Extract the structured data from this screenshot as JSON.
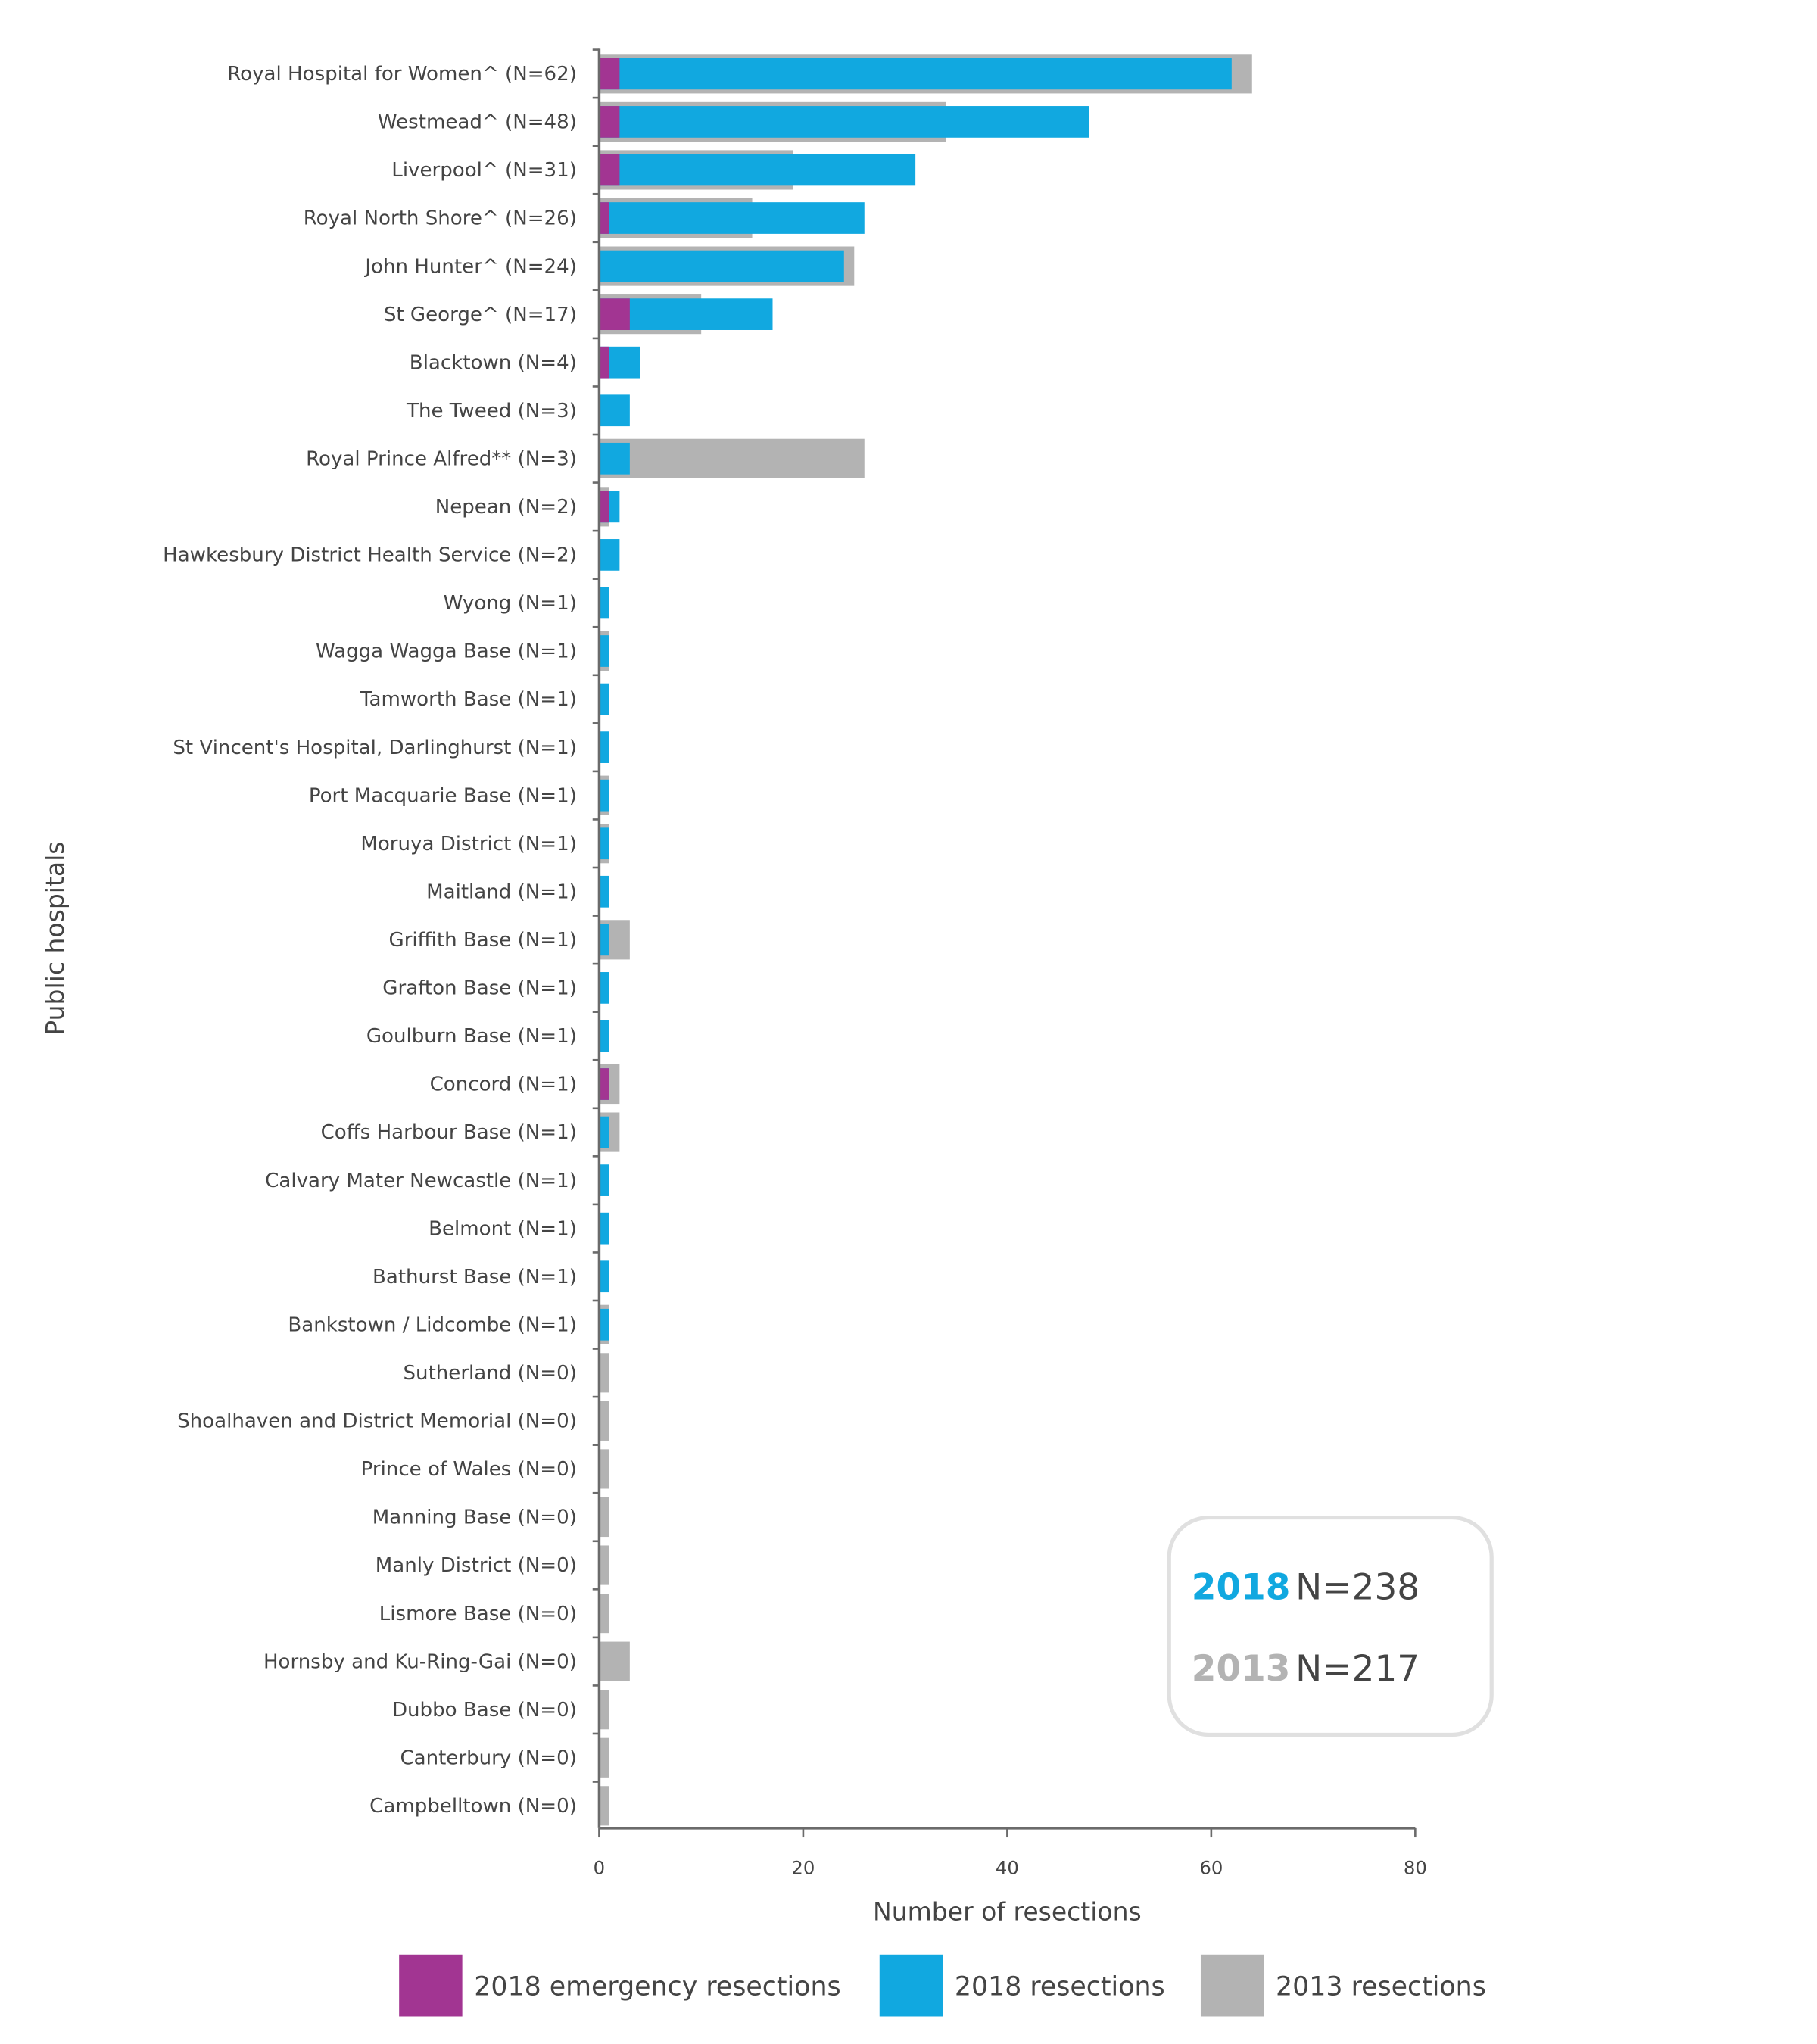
{
  "chart_data": {
    "type": "bar",
    "orientation": "horizontal",
    "xlabel": "Number of resections",
    "ylabel": "Public hospitals",
    "xlim": [
      0,
      80
    ],
    "xticks": [
      "0",
      "20",
      "40",
      "60",
      "80"
    ],
    "grid": false,
    "legend_position": "bottom",
    "categories": [
      "Royal Hospital for Women^ (N=62)",
      "Westmead^ (N=48)",
      "Liverpool^ (N=31)",
      "Royal North Shore^ (N=26)",
      "John Hunter^ (N=24)",
      "St George^ (N=17)",
      "Blacktown (N=4)",
      "The Tweed (N=3)",
      "Royal Prince Alfred** (N=3)",
      "Nepean (N=2)",
      "Hawkesbury District Health Service (N=2)",
      "Wyong (N=1)",
      "Wagga Wagga Base (N=1)",
      "Tamworth Base (N=1)",
      "St Vincent's Hospital, Darlinghurst (N=1)",
      "Port Macquarie Base (N=1)",
      "Moruya District (N=1)",
      "Maitland (N=1)",
      "Griffith Base (N=1)",
      "Grafton Base (N=1)",
      "Goulburn Base (N=1)",
      "Concord (N=1)",
      "Coffs Harbour Base (N=1)",
      "Calvary Mater Newcastle (N=1)",
      "Belmont (N=1)",
      "Bathurst Base (N=1)",
      "Bankstown / Lidcombe (N=1)",
      "Sutherland (N=0)",
      "Shoalhaven and District Memorial (N=0)",
      "Prince of Wales (N=0)",
      "Manning Base (N=0)",
      "Manly District (N=0)",
      "Lismore Base (N=0)",
      "Hornsby and Ku-Ring-Gai (N=0)",
      "Dubbo Base (N=0)",
      "Canterbury (N=0)",
      "Campbelltown (N=0)"
    ],
    "series": [
      {
        "name": "2013 resections",
        "color": "#b3b3b3",
        "values": [
          64,
          34,
          19,
          15,
          25,
          10,
          0,
          0,
          26,
          1,
          0,
          0,
          1,
          0,
          0,
          1,
          1,
          0,
          3,
          0,
          0,
          2,
          2,
          0,
          0,
          0,
          1,
          1,
          1,
          1,
          1,
          1,
          1,
          3,
          1,
          1,
          1
        ]
      },
      {
        "name": "2018 resections",
        "color": "#11a8e0",
        "values": [
          62,
          48,
          31,
          26,
          24,
          17,
          4,
          3,
          3,
          2,
          2,
          1,
          1,
          1,
          1,
          1,
          1,
          1,
          1,
          1,
          1,
          1,
          1,
          1,
          1,
          1,
          1,
          0,
          0,
          0,
          0,
          0,
          0,
          0,
          0,
          0,
          0
        ]
      },
      {
        "name": "2018 emergency resections",
        "color": "#a23592",
        "values": [
          2,
          2,
          2,
          1,
          0,
          3,
          1,
          0,
          0,
          1,
          0,
          0,
          0,
          0,
          0,
          0,
          0,
          0,
          0,
          0,
          0,
          1,
          0,
          0,
          0,
          0,
          0,
          0,
          0,
          0,
          0,
          0,
          0,
          0,
          0,
          0,
          0
        ]
      }
    ],
    "legend": [
      "2018 emergency resections",
      "2018 resections",
      "2013 resections"
    ],
    "summary_box": [
      {
        "year": "2018",
        "n": "N=238",
        "color": "#11a8e0"
      },
      {
        "year": "2013",
        "n": "N=217",
        "color": "#b3b3b3"
      }
    ]
  }
}
